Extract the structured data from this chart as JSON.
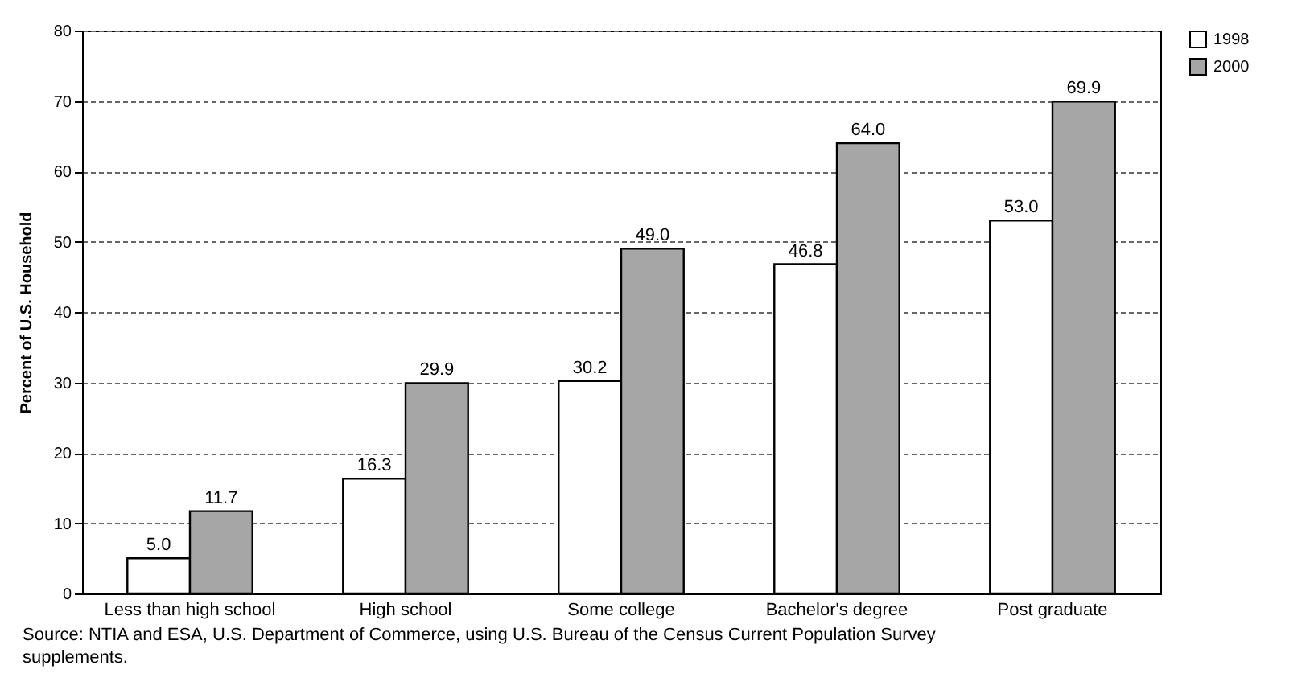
{
  "chart_data": {
    "type": "bar",
    "ylabel": "Percent of U.S. Household",
    "categories": [
      "Less than high school",
      "High school",
      "Some college",
      "Bachelor's degree",
      "Post graduate"
    ],
    "series": [
      {
        "name": "1998",
        "color": "#ffffff",
        "values": [
          5.0,
          16.3,
          30.2,
          46.8,
          53.0
        ],
        "value_labels": [
          "5.0",
          "16.3",
          "30.2",
          "46.8",
          "53.0"
        ]
      },
      {
        "name": "2000",
        "color": "#a6a6a6",
        "values": [
          11.7,
          29.9,
          49.0,
          64.0,
          69.9
        ],
        "value_labels": [
          "11.7",
          "29.9",
          "49.0",
          "64.0",
          "69.9"
        ]
      }
    ],
    "ylim": [
      0,
      80
    ],
    "yticks": [
      0,
      10,
      20,
      30,
      40,
      50,
      60,
      70,
      80
    ],
    "grid": "y",
    "legend": "top right",
    "annotations": [
      "Source:  NTIA and ESA, U.S. Department of Commerce, using U.S. Bureau of the Census Current Population Survey supplements."
    ]
  }
}
